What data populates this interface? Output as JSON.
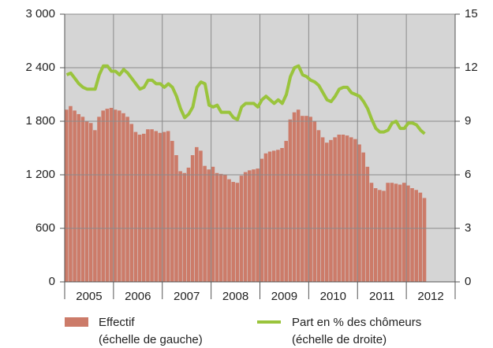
{
  "chart_data": {
    "type": "bar_line",
    "years": [
      "2005",
      "2006",
      "2007",
      "2008",
      "2009",
      "2010",
      "2011",
      "2012"
    ],
    "ylim": [
      0,
      3000
    ],
    "yticks": [
      0,
      600,
      {
        "value": 1200,
        "label": "1 200"
      },
      {
        "value": 1800,
        "label": "1 800"
      },
      {
        "value": 2400,
        "label": "2 400"
      },
      {
        "value": 3000,
        "label": "3 000"
      }
    ],
    "y2lim": [
      0,
      15
    ],
    "y2ticks": [
      0,
      3,
      6,
      9,
      12,
      15
    ],
    "grid": true,
    "legend": "bottom",
    "series": [
      {
        "name": "Effectif",
        "scale_note": "(échelle de gauche)",
        "type": "bar",
        "color": "#cc7b69",
        "values": [
          1930,
          1970,
          1920,
          1880,
          1850,
          1800,
          1780,
          1700,
          1850,
          1920,
          1940,
          1950,
          1930,
          1920,
          1890,
          1850,
          1770,
          1680,
          1650,
          1660,
          1710,
          1710,
          1690,
          1670,
          1680,
          1690,
          1580,
          1420,
          1240,
          1220,
          1280,
          1420,
          1510,
          1470,
          1300,
          1260,
          1290,
          1220,
          1210,
          1200,
          1150,
          1120,
          1110,
          1190,
          1230,
          1250,
          1260,
          1270,
          1380,
          1440,
          1460,
          1470,
          1480,
          1500,
          1580,
          1820,
          1900,
          1930,
          1860,
          1860,
          1850,
          1800,
          1700,
          1620,
          1560,
          1590,
          1620,
          1650,
          1650,
          1640,
          1620,
          1600,
          1540,
          1450,
          1290,
          1110,
          1050,
          1030,
          1020,
          1110,
          1110,
          1100,
          1090,
          1110,
          1080,
          1050,
          1030,
          1000,
          940
        ]
      },
      {
        "name": "Part en % des chômeurs",
        "scale_note": "(échelle de droite)",
        "type": "line",
        "axis": "y2",
        "color": "#9ac43c",
        "values": [
          11.6,
          11.7,
          11.4,
          11.1,
          10.9,
          10.8,
          10.8,
          10.8,
          11.6,
          12.1,
          12.1,
          11.8,
          11.8,
          11.6,
          11.9,
          11.7,
          11.4,
          11.1,
          10.8,
          10.9,
          11.3,
          11.3,
          11.1,
          11.1,
          10.9,
          11.1,
          10.9,
          10.4,
          9.7,
          9.2,
          9.4,
          9.8,
          10.9,
          11.2,
          11.1,
          9.9,
          9.8,
          9.9,
          9.5,
          9.5,
          9.5,
          9.2,
          9.1,
          9.8,
          10.0,
          10.0,
          10.0,
          9.8,
          10.2,
          10.4,
          10.2,
          10.0,
          10.2,
          10.0,
          10.5,
          11.5,
          12.0,
          12.1,
          11.6,
          11.5,
          11.3,
          11.2,
          11.0,
          10.6,
          10.2,
          10.1,
          10.4,
          10.8,
          10.9,
          10.9,
          10.6,
          10.5,
          10.4,
          10.1,
          9.7,
          9.1,
          8.6,
          8.4,
          8.4,
          8.5,
          8.9,
          9.0,
          8.6,
          8.6,
          8.9,
          8.9,
          8.8,
          8.5,
          8.3
        ]
      }
    ]
  }
}
